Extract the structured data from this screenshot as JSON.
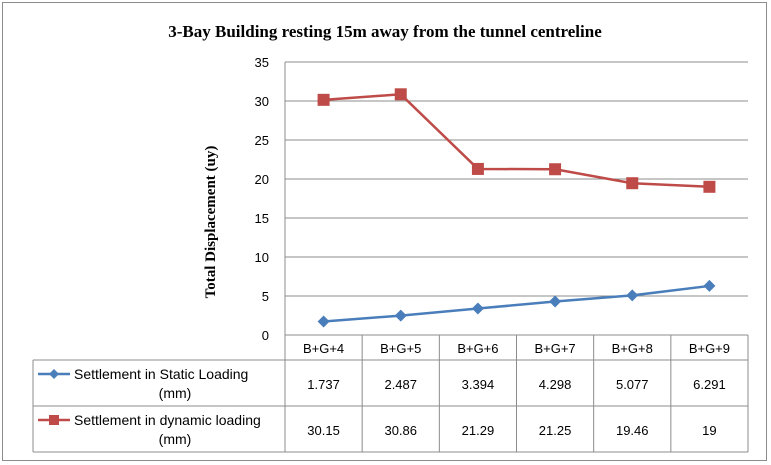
{
  "chart_data": {
    "type": "line",
    "title": "3-Bay Building  resting 15m  away from  the tunnel  centreline",
    "xlabel": "",
    "ylabel": "Total Displacement  (uy)",
    "ylim": [
      0,
      35
    ],
    "yticks": [
      "0",
      "5",
      "10",
      "15",
      "20",
      "25",
      "30",
      "35"
    ],
    "ytick_values": [
      0,
      5,
      10,
      15,
      20,
      25,
      30,
      35
    ],
    "grid": true,
    "legend": "data-table",
    "categories": [
      "B+G+4",
      "B+G+5",
      "B+G+6",
      "B+G+7",
      "B+G+8",
      "B+G+9"
    ],
    "series": [
      {
        "name": "Settlement in Static Loading (mm)",
        "name_lines": [
          "Settlement in Static Loading",
          "(mm)"
        ],
        "color": "#4a7ebb",
        "marker": "diamond",
        "values": [
          1.737,
          2.487,
          3.394,
          4.298,
          5.077,
          6.291
        ],
        "labels": [
          "1.737",
          "2.487",
          "3.394",
          "4.298",
          "5.077",
          "6.291"
        ]
      },
      {
        "name": "Settlement in dynamic loading (mm)",
        "name_lines": [
          "Settlement in dynamic loading",
          "(mm)"
        ],
        "color": "#be4b48",
        "marker": "square",
        "values": [
          30.15,
          30.86,
          21.29,
          21.25,
          19.46,
          19
        ],
        "labels": [
          "30.15",
          "30.86",
          "21.29",
          "21.25",
          "19.46",
          "19"
        ]
      }
    ]
  }
}
